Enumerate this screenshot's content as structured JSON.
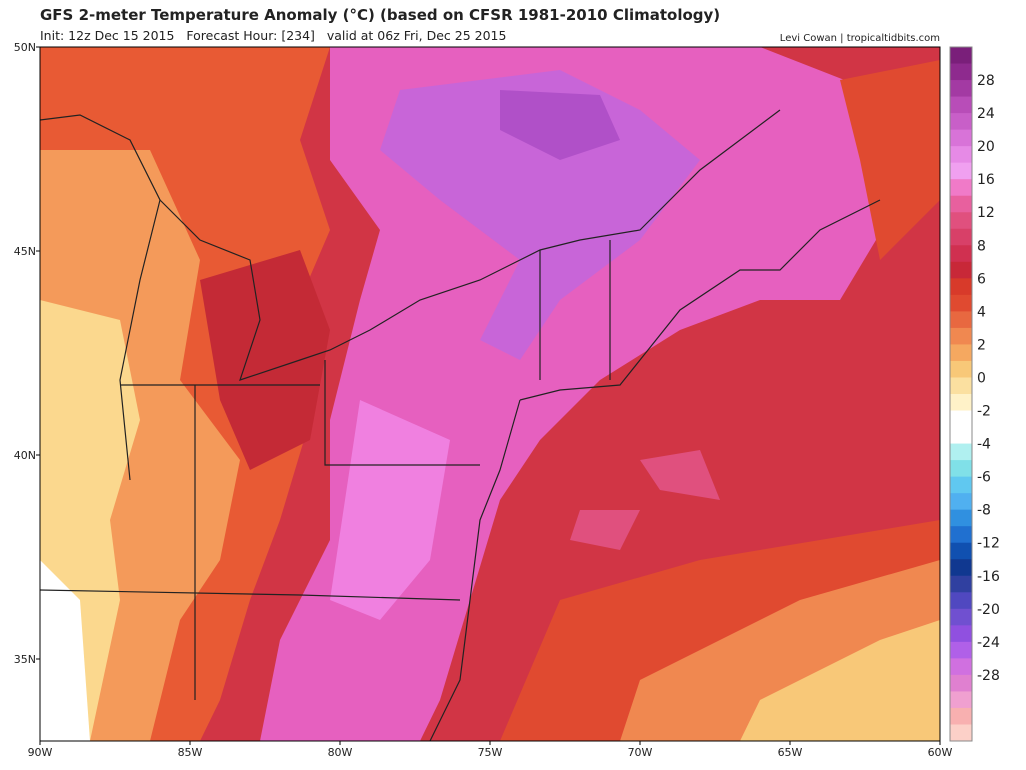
{
  "header": {
    "title": "GFS 2-meter Temperature Anomaly (°C) (based on CFSR 1981-2010 Climatology)",
    "subtitle": "Init: 12z Dec 15 2015   Forecast Hour: [234]   valid at 06z Fri, Dec 25 2015",
    "credit": "Levi Cowan | tropicaltidbits.com"
  },
  "map": {
    "lat_labels": [
      "50N",
      "45N",
      "40N",
      "35N"
    ],
    "lon_labels": [
      "90W",
      "85W",
      "80W",
      "75W",
      "70W",
      "65W",
      "60W"
    ]
  },
  "colorbar": {
    "labels": [
      28,
      24,
      20,
      16,
      12,
      8,
      6,
      4,
      2,
      0,
      -2,
      -4,
      -6,
      -8,
      -12,
      -16,
      -20,
      -24,
      -28
    ],
    "colors": [
      "#7a1f7a",
      "#8e2a8e",
      "#a33aa3",
      "#b84db8",
      "#c85fc8",
      "#d873d8",
      "#e68ae6",
      "#f0a0f0",
      "#f07ac8",
      "#e8609e",
      "#e0507e",
      "#d84068",
      "#d03050",
      "#c82838",
      "#d83a2a",
      "#e04a30",
      "#e86840",
      "#f08850",
      "#f5a860",
      "#f8c878",
      "#fbe0a0",
      "#fff2c8",
      "#ffffff",
      "#ffffff",
      "#b0f0f0",
      "#80e0e8",
      "#60c8f0",
      "#50b0f0",
      "#3090e0",
      "#2070d0",
      "#1050b0",
      "#103890",
      "#3040a0",
      "#5048c0",
      "#7050d0",
      "#9050e0",
      "#b060e8",
      "#d070e0",
      "#e080d0",
      "#f0a0d0",
      "#f8b0b0",
      "#fcd0c8"
    ]
  }
}
